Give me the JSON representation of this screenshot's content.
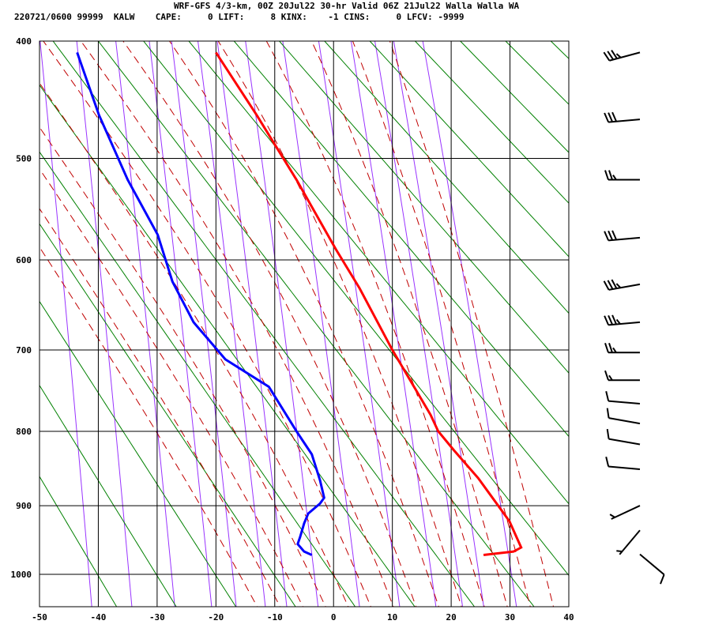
{
  "header": {
    "title": "WRF-GFS 4/3-km, 00Z 20Jul22 30-hr Valid 06Z 21Jul22 Walla Walla WA",
    "info": "220721/0600 99999  KALW    CAPE:     0 LIFT:     8 KINX:    -1 CINS:     0 LFCV: -9999"
  },
  "chart_data": {
    "type": "line",
    "diagram": "stuve skew sounding (pressure^0.286 vertical axis)",
    "title": "",
    "xlabel": "",
    "ylabel": "",
    "xlim": [
      -50,
      40
    ],
    "ylim_hpa": [
      1050,
      400
    ],
    "x_ticks": [
      -50,
      -40,
      -30,
      -20,
      -10,
      0,
      10,
      20,
      30,
      40
    ],
    "y_ticks": [
      400,
      500,
      600,
      700,
      800,
      900,
      1000
    ],
    "grid": true,
    "colors": {
      "temperature": "#ff0000",
      "dewpoint": "#0000ff",
      "dry_adiabat": "#008000",
      "moist_adiabat": "#c00000",
      "mixing_ratio": "#9933ff",
      "grid": "#000000"
    },
    "series": [
      {
        "key": "temperature",
        "p": [
          409,
          461,
          520,
          589,
          630,
          700,
          779,
          800,
          825,
          862,
          891,
          922,
          960,
          966,
          971
        ],
        "t": [
          -20.0,
          -13.1,
          -6.3,
          0.4,
          4.4,
          10.0,
          16.5,
          17.8,
          20.5,
          24.6,
          27.2,
          29.9,
          31.9,
          30.6,
          25.5
        ]
      },
      {
        "key": "dewpoint",
        "p": [
          409,
          461,
          520,
          574,
          623,
          668,
          711,
          744,
          800,
          830,
          865,
          889,
          897,
          911,
          925,
          945,
          955,
          966,
          971
        ],
        "t": [
          -43.6,
          -39.9,
          -35.0,
          -29.9,
          -27.4,
          -23.8,
          -18.4,
          -11.0,
          -6.3,
          -3.7,
          -2.3,
          -1.6,
          -2.3,
          -4.3,
          -5.0,
          -5.7,
          -6.1,
          -5.0,
          -3.7
        ]
      }
    ],
    "dry_adiabats_theta_k": [
      233,
      243,
      253,
      263,
      273,
      283,
      293,
      303,
      313,
      323,
      333,
      343,
      353,
      363,
      373,
      383,
      393,
      403,
      413
    ],
    "moist_adiabats_t1000_c": [
      -16,
      -12,
      -8,
      -4,
      0,
      4,
      8,
      12,
      16,
      20,
      24,
      28,
      32,
      36
    ],
    "mixing_ratio_gkg": [
      0.1,
      0.2,
      0.4,
      0.7,
      1,
      1.5,
      2,
      3,
      5,
      8,
      12,
      16,
      20,
      28
    ],
    "wind_barbs": [
      {
        "p": 409,
        "dir": 255,
        "kt": 35
      },
      {
        "p": 465,
        "dir": 265,
        "kt": 30
      },
      {
        "p": 520,
        "dir": 270,
        "kt": 25
      },
      {
        "p": 577,
        "dir": 265,
        "kt": 30
      },
      {
        "p": 626,
        "dir": 260,
        "kt": 35
      },
      {
        "p": 668,
        "dir": 265,
        "kt": 35
      },
      {
        "p": 703,
        "dir": 270,
        "kt": 25
      },
      {
        "p": 736,
        "dir": 270,
        "kt": 15
      },
      {
        "p": 765,
        "dir": 275,
        "kt": 10
      },
      {
        "p": 790,
        "dir": 280,
        "kt": 10
      },
      {
        "p": 817,
        "dir": 280,
        "kt": 10
      },
      {
        "p": 850,
        "dir": 275,
        "kt": 10
      },
      {
        "p": 900,
        "dir": 245,
        "kt": 5
      },
      {
        "p": 935,
        "dir": 220,
        "kt": 5
      },
      {
        "p": 970,
        "dir": 130,
        "kt": 10
      }
    ]
  }
}
